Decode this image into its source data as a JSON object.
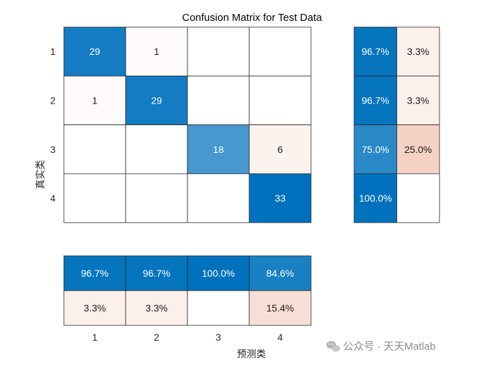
{
  "chart_data": {
    "type": "heatmap",
    "title": "Confusion Matrix for Test Data",
    "xlabel": "预测类",
    "ylabel": "真实类",
    "classes": [
      "1",
      "2",
      "3",
      "4"
    ],
    "matrix": [
      [
        29,
        1,
        null,
        null
      ],
      [
        1,
        29,
        null,
        null
      ],
      [
        null,
        null,
        18,
        6
      ],
      [
        null,
        null,
        null,
        33
      ]
    ],
    "row_summary": {
      "correct": [
        "96.7%",
        "96.7%",
        "75.0%",
        "100.0%"
      ],
      "incorrect": [
        "3.3%",
        "3.3%",
        "25.0%",
        ""
      ]
    },
    "column_summary": {
      "correct": [
        "96.7%",
        "96.7%",
        "100.0%",
        "84.6%"
      ],
      "incorrect": [
        "3.3%",
        "3.3%",
        "",
        "15.4%"
      ]
    }
  },
  "colors": {
    "correct_strong": "#0072BD",
    "incorrect_strong": "#D95319",
    "empty": "#ffffff",
    "border": "#262626"
  },
  "watermark": "公众号 · 天天Matlab"
}
